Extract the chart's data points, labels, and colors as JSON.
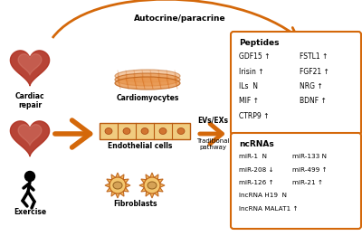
{
  "background_color": "#ffffff",
  "arrow_color": "#D4680A",
  "box_border_color": "#D4680A",
  "autocrine_label": "Autocrine/paracrine",
  "evs_label": "EVs/EXs",
  "pathway_label": "Traditional\npathway",
  "peptides_title": "Peptides",
  "peptides_col1": [
    "GDF15 ↑",
    "Irisin ↑",
    "ILs  N",
    "MIF ↑",
    "CTRP9 ↑"
  ],
  "peptides_col2": [
    "FSTL1 ↑",
    "FGF21 ↑",
    "NRG ↑",
    "BDNF ↑",
    ""
  ],
  "ncrnas_title": "ncRNAs",
  "ncrnas_col1": [
    "miR-1  N",
    "miR-208 ↓",
    "miR-126 ↑",
    "lncRNA H19  N",
    "lncRNA MALAT1 ↑"
  ],
  "ncrnas_col2": [
    "miR-133 N",
    "miR-499 ↑",
    "miR-21 ↑",
    "",
    ""
  ]
}
